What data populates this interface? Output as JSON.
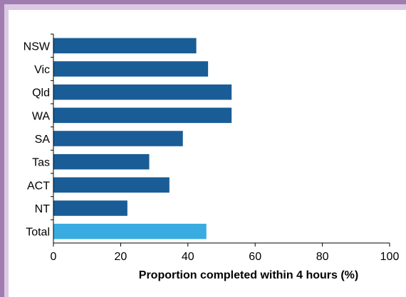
{
  "chart_data": {
    "type": "bar",
    "orientation": "horizontal",
    "categories": [
      "NSW",
      "Vic",
      "Qld",
      "WA",
      "SA",
      "Tas",
      "ACT",
      "NT",
      "Total"
    ],
    "values": [
      42.5,
      46,
      53,
      53,
      38.5,
      28.5,
      34.5,
      22,
      45.5
    ],
    "colors": {
      "default": "#1a5c96",
      "highlight": "#3aabe0",
      "highlight_category": "Total"
    },
    "xlabel": "Proportion completed within 4 hours (%)",
    "ylabel": "",
    "xlim": [
      0,
      100
    ],
    "xticks": [
      0,
      20,
      40,
      60,
      80,
      100
    ],
    "grid": false,
    "legend": "none"
  }
}
